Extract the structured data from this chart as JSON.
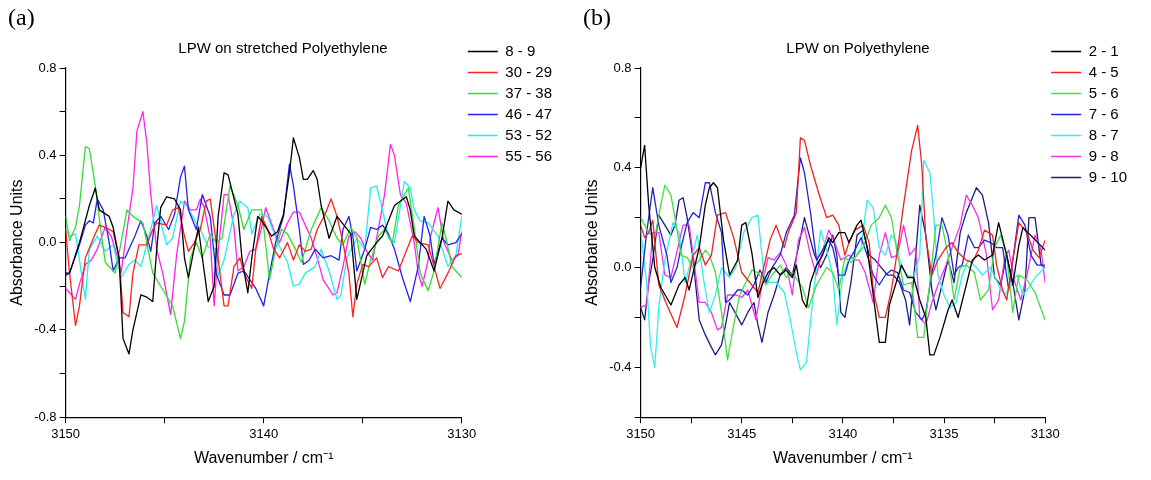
{
  "chart_data": [
    {
      "type": "line",
      "title": "LPW on stretched Polyethylene",
      "annotations": [
        "(a)"
      ],
      "xlabel": "Wavenumber / cm⁻¹",
      "ylabel": "Absorbance Units",
      "xlim": [
        3150,
        3130
      ],
      "xticks": [
        3150,
        {
          "value": 3145,
          "label": null
        },
        3140,
        {
          "value": 3135,
          "label": null
        },
        3130
      ],
      "ylim": [
        -0.8,
        0.8
      ],
      "yticks": [
        -0.8,
        {
          "value": -0.6,
          "label": null
        },
        -0.4,
        {
          "value": -0.2,
          "label": null
        },
        {
          "value": 0,
          "label": "0.0"
        },
        {
          "value": 0.2,
          "label": null
        },
        0.4,
        {
          "value": 0.6,
          "label": null
        },
        0.8
      ],
      "grid": false,
      "legend": "top right",
      "marker": "none",
      "line_style": "solid",
      "series": [
        {
          "name": "8 - 9",
          "color": "#000000",
          "x": [
            3150.0,
            3149.8,
            3149.3,
            3148.8,
            3148.5,
            3148.3,
            3147.8,
            3147.6,
            3147.3,
            3147.1,
            3146.8,
            3146.6,
            3146.2,
            3145.9,
            3145.6,
            3145.4,
            3145.2,
            3144.9,
            3144.5,
            3144.2,
            3144.0,
            3143.8,
            3143.3,
            3142.8,
            3142.5,
            3142.3,
            3142.0,
            3141.8,
            3141.3,
            3141.1,
            3140.8,
            3140.6,
            3140.3,
            3140.1,
            3139.6,
            3139.3,
            3139.0,
            3138.7,
            3138.5,
            3138.2,
            3138.0,
            3137.8,
            3137.5,
            3137.3,
            3137.1,
            3136.7,
            3136.3,
            3135.6,
            3135.3,
            3135.0,
            3134.8,
            3134.3,
            3134.0,
            3133.4,
            3132.8,
            3132.6,
            3132.4,
            3131.8,
            3131.4,
            3131.0,
            3130.7,
            3130.4,
            3130.0
          ],
          "values": [
            -0.14,
            -0.14,
            0.0,
            0.17,
            0.25,
            0.15,
            0.12,
            0.07,
            -0.07,
            -0.44,
            -0.51,
            -0.4,
            -0.24,
            -0.25,
            -0.27,
            -0.03,
            0.16,
            0.21,
            0.2,
            0.15,
            -0.07,
            -0.16,
            0.07,
            -0.27,
            -0.2,
            0.12,
            0.32,
            0.31,
            0.13,
            -0.07,
            -0.23,
            -0.07,
            0.12,
            0.1,
            0.03,
            0.05,
            0.13,
            0.32,
            0.48,
            0.39,
            0.29,
            0.29,
            0.33,
            0.29,
            0.17,
            0.02,
            0.12,
            0.04,
            -0.26,
            -0.14,
            -0.06,
            0.0,
            0.03,
            0.17,
            0.21,
            0.15,
            0.03,
            -0.03,
            -0.13,
            0.02,
            0.19,
            0.15,
            0.13
          ]
        },
        {
          "name": "30 - 29",
          "color": "#ff2020",
          "x": [
            3150.0,
            3149.8,
            3149.5,
            3149.3,
            3149.0,
            3148.6,
            3148.3,
            3148.0,
            3147.6,
            3147.3,
            3147.1,
            3146.8,
            3146.6,
            3146.3,
            3145.9,
            3145.6,
            3145.4,
            3144.9,
            3144.6,
            3144.3,
            3144.0,
            3143.8,
            3143.5,
            3143.2,
            3142.9,
            3142.7,
            3142.4,
            3142.0,
            3141.8,
            3141.5,
            3141.2,
            3141.0,
            3140.6,
            3140.4,
            3140.1,
            3139.8,
            3139.5,
            3139.2,
            3138.8,
            3138.5,
            3138.2,
            3137.9,
            3137.6,
            3137.3,
            3136.9,
            3136.6,
            3136.3,
            3136.0,
            3135.7,
            3135.5,
            3135.3,
            3135.0,
            3134.7,
            3134.3,
            3134.0,
            3133.7,
            3133.2,
            3132.9,
            3132.5,
            3132.2,
            3131.7,
            3131.4,
            3131.1,
            3130.7,
            3130.3,
            3130.0
          ],
          "values": [
            0.06,
            -0.14,
            -0.38,
            -0.29,
            -0.07,
            0.02,
            0.08,
            0.07,
            0.05,
            -0.07,
            -0.32,
            -0.34,
            -0.14,
            -0.01,
            -0.01,
            0.06,
            0.09,
            0.08,
            0.15,
            0.16,
            0.03,
            -0.04,
            0.0,
            0.06,
            0.19,
            0.2,
            0.0,
            -0.29,
            -0.29,
            -0.11,
            -0.07,
            -0.14,
            -0.21,
            -0.03,
            0.12,
            0.06,
            -0.03,
            -0.07,
            0.0,
            -0.08,
            -0.01,
            -0.04,
            -0.03,
            0.06,
            0.13,
            0.2,
            0.12,
            0.0,
            -0.14,
            -0.34,
            -0.19,
            -0.1,
            -0.11,
            -0.07,
            -0.16,
            -0.11,
            -0.13,
            -0.06,
            0.03,
            0.0,
            -0.01,
            -0.11,
            -0.21,
            -0.14,
            -0.06,
            -0.05
          ]
        },
        {
          "name": "37 - 38",
          "color": "#33dd33",
          "x": [
            3150.0,
            3149.8,
            3149.5,
            3149.3,
            3149.0,
            3148.8,
            3148.5,
            3148.2,
            3148.0,
            3147.5,
            3147.2,
            3146.9,
            3146.6,
            3146.1,
            3145.6,
            3145.2,
            3144.6,
            3144.2,
            3144.0,
            3143.7,
            3143.4,
            3143.1,
            3142.7,
            3142.4,
            3142.1,
            3141.7,
            3141.3,
            3141.0,
            3140.6,
            3140.1,
            3139.7,
            3139.4,
            3139.1,
            3138.8,
            3138.4,
            3138.1,
            3137.6,
            3137.1,
            3136.7,
            3136.3,
            3136.0,
            3135.6,
            3135.3,
            3134.9,
            3134.6,
            3134.2,
            3133.9,
            3133.5,
            3133.2,
            3132.7,
            3132.4,
            3132.1,
            3131.7,
            3131.4,
            3131.0,
            3130.8,
            3130.5,
            3130.0
          ],
          "values": [
            0.12,
            0.01,
            0.07,
            0.17,
            0.44,
            0.43,
            0.26,
            0.04,
            -0.09,
            -0.14,
            0.0,
            0.15,
            0.12,
            0.09,
            -0.14,
            -0.2,
            -0.29,
            -0.44,
            -0.36,
            -0.07,
            0.0,
            -0.07,
            0.04,
            0.0,
            0.02,
            0.26,
            0.17,
            0.06,
            0.15,
            0.15,
            -0.17,
            -0.03,
            0.06,
            0.04,
            -0.03,
            -0.09,
            0.06,
            0.16,
            0.1,
            0.02,
            -0.01,
            0.07,
            0.02,
            -0.19,
            -0.08,
            0.03,
            0.06,
            0.0,
            0.17,
            0.25,
            0.07,
            -0.14,
            -0.22,
            -0.13,
            0.09,
            0.02,
            -0.11,
            -0.16
          ]
        },
        {
          "name": "46 - 47",
          "color": "#2222ee",
          "x": [
            3150.0,
            3149.8,
            3149.3,
            3149.0,
            3148.8,
            3148.6,
            3148.4,
            3148.1,
            3147.8,
            3147.6,
            3147.3,
            3147.0,
            3146.5,
            3146.2,
            3145.9,
            3145.7,
            3145.5,
            3145.2,
            3144.8,
            3144.5,
            3144.2,
            3144.0,
            3143.8,
            3143.4,
            3143.1,
            3142.7,
            3142.4,
            3142.0,
            3141.7,
            3141.3,
            3141.0,
            3140.7,
            3140.4,
            3140.0,
            3139.7,
            3139.4,
            3139.0,
            3138.7,
            3138.5,
            3138.2,
            3138.0,
            3137.7,
            3137.4,
            3137.0,
            3136.6,
            3136.2,
            3136.0,
            3135.7,
            3135.5,
            3135.3,
            3134.9,
            3134.6,
            3134.3,
            3134.0,
            3133.7,
            3133.4,
            3133.0,
            3132.6,
            3132.2,
            3131.9,
            3131.6,
            3131.4,
            3131.0,
            3130.7,
            3130.3,
            3130.0
          ],
          "values": [
            -0.15,
            -0.14,
            -0.01,
            0.08,
            0.1,
            0.09,
            0.2,
            0.15,
            0.0,
            -0.13,
            -0.07,
            -0.07,
            0.03,
            0.1,
            0.03,
            -0.04,
            0.09,
            0.12,
            0.06,
            0.13,
            0.3,
            0.35,
            0.15,
            0.06,
            0.22,
            0.12,
            -0.14,
            -0.24,
            -0.24,
            -0.14,
            -0.13,
            -0.17,
            -0.21,
            -0.29,
            -0.14,
            0.0,
            0.12,
            0.36,
            0.26,
            0.06,
            -0.1,
            -0.08,
            -0.03,
            -0.07,
            -0.06,
            -0.08,
            0.06,
            0.12,
            0.03,
            -0.13,
            -0.03,
            0.07,
            0.06,
            0.08,
            0.04,
            -0.03,
            -0.16,
            -0.27,
            -0.11,
            0.12,
            0.03,
            -0.1,
            0.02,
            -0.01,
            0.0,
            0.04
          ]
        },
        {
          "name": "53 - 52",
          "color": "#22eeee",
          "x": [
            3150.0,
            3149.8,
            3149.5,
            3149.3,
            3149.0,
            3148.8,
            3148.4,
            3148.0,
            3147.6,
            3147.2,
            3146.8,
            3146.5,
            3146.2,
            3145.9,
            3145.4,
            3145.1,
            3144.9,
            3144.6,
            3144.2,
            3143.9,
            3143.6,
            3143.2,
            3142.8,
            3142.4,
            3142.3,
            3142.0,
            3141.5,
            3141.2,
            3140.8,
            3140.6,
            3140.2,
            3139.8,
            3139.3,
            3138.8,
            3138.5,
            3138.2,
            3137.9,
            3137.4,
            3137.1,
            3136.7,
            3136.3,
            3136.1,
            3135.8,
            3135.3,
            3134.9,
            3134.6,
            3134.3,
            3134.0,
            3133.7,
            3133.4,
            3132.9,
            3132.6,
            3132.4,
            3132.1,
            3131.7,
            3131.2,
            3130.7,
            3130.3,
            3130.0
          ],
          "values": [
            0.06,
            0.03,
            0.04,
            -0.08,
            -0.26,
            -0.03,
            0.03,
            -0.04,
            -0.01,
            -0.16,
            -0.1,
            -0.08,
            -0.11,
            -0.01,
            0.17,
            0.06,
            -0.01,
            0.02,
            0.19,
            0.17,
            0.12,
            0.06,
            -0.02,
            -0.03,
            -0.15,
            -0.08,
            0.13,
            0.19,
            0.16,
            0.04,
            0.13,
            0.12,
            0.0,
            -0.09,
            -0.2,
            -0.19,
            -0.14,
            -0.11,
            -0.03,
            -0.13,
            -0.26,
            -0.24,
            -0.07,
            0.02,
            -0.03,
            0.25,
            0.26,
            0.15,
            0.02,
            0.0,
            0.28,
            0.25,
            0.15,
            0.1,
            0.09,
            0.03,
            -0.11,
            -0.06,
            0.12
          ]
        },
        {
          "name": "55 - 56",
          "color": "#ff22ee",
          "x": [
            3150.0,
            3149.8,
            3149.5,
            3149.3,
            3149.0,
            3148.7,
            3148.4,
            3148.0,
            3147.7,
            3147.4,
            3147.2,
            3146.9,
            3146.6,
            3146.4,
            3146.1,
            3145.9,
            3145.7,
            3145.4,
            3145.1,
            3144.7,
            3144.4,
            3144.0,
            3143.7,
            3143.4,
            3143.2,
            3143.0,
            3142.7,
            3142.5,
            3142.3,
            3142.0,
            3141.8,
            3141.5,
            3141.3,
            3141.0,
            3140.7,
            3140.4,
            3140.1,
            3139.9,
            3139.5,
            3139.2,
            3138.8,
            3138.5,
            3138.2,
            3137.9,
            3137.6,
            3137.3,
            3137.0,
            3136.5,
            3136.3,
            3136.0,
            3135.7,
            3135.4,
            3135.1,
            3134.8,
            3134.5,
            3134.2,
            3133.9,
            3133.6,
            3133.4,
            3133.1,
            3132.8,
            3132.4,
            3132.2,
            3132.0,
            3131.7,
            3131.6,
            3131.2,
            3130.9,
            3130.5,
            3130.2,
            3130.0
          ],
          "values": [
            -0.21,
            -0.23,
            -0.26,
            -0.19,
            -0.1,
            -0.08,
            -0.03,
            0.07,
            0.03,
            -0.06,
            -0.14,
            0.06,
            0.25,
            0.51,
            0.6,
            0.46,
            0.22,
            -0.03,
            -0.14,
            -0.33,
            -0.06,
            0.19,
            0.15,
            0.15,
            0.2,
            0.16,
            0.02,
            -0.29,
            -0.04,
            0.22,
            0.22,
            0.07,
            -0.13,
            -0.11,
            -0.04,
            -0.03,
            0.07,
            0.16,
            0.06,
            0.0,
            0.09,
            0.14,
            0.14,
            0.08,
            0.02,
            -0.07,
            -0.17,
            -0.24,
            -0.23,
            -0.11,
            0.03,
            0.05,
            0.02,
            -0.04,
            -0.08,
            0.07,
            0.22,
            0.45,
            0.4,
            0.22,
            0.18,
            0.0,
            -0.14,
            -0.2,
            -0.08,
            0.02,
            0.16,
            0.0,
            -0.08,
            -0.06,
            0.05
          ]
        }
      ]
    },
    {
      "type": "line",
      "title": "LPW on Polyethylene",
      "annotations": [
        "(b)"
      ],
      "xlabel": "Wavenumber / cm⁻¹",
      "ylabel": "Absorbance Units",
      "xlim": [
        3150,
        3130
      ],
      "xticks": [
        3150,
        {
          "value": 3147.5,
          "label": null
        },
        3145,
        {
          "value": 3142.5,
          "label": null
        },
        3140,
        {
          "value": 3137.5,
          "label": null
        },
        3135,
        {
          "value": 3132.5,
          "label": null
        },
        3130
      ],
      "ylim": [
        -0.6,
        0.8
      ],
      "yticks": [
        {
          "value": -0.6,
          "label": null
        },
        -0.4,
        {
          "value": -0.2,
          "label": null
        },
        {
          "value": 0,
          "label": "0.0"
        },
        {
          "value": 0.2,
          "label": null
        },
        0.4,
        {
          "value": 0.6,
          "label": null
        },
        0.8
      ],
      "grid": false,
      "legend": "top right",
      "marker": "none",
      "line_style": "solid",
      "series": [
        {
          "name": "2 - 1",
          "color": "#000000",
          "x": [
            3150.0,
            3149.8,
            3149.6,
            3149.3,
            3149.0,
            3148.5,
            3148.1,
            3147.8,
            3147.6,
            3147.4,
            3147.1,
            3146.8,
            3146.6,
            3146.4,
            3146.2,
            3145.9,
            3145.6,
            3145.2,
            3145.0,
            3144.8,
            3144.5,
            3144.2,
            3144.0,
            3143.7,
            3143.4,
            3143.1,
            3142.8,
            3142.5,
            3142.3,
            3142.0,
            3141.8,
            3141.6,
            3141.3,
            3141.0,
            3140.7,
            3140.5,
            3140.2,
            3139.9,
            3139.7,
            3139.3,
            3139.1,
            3138.8,
            3138.5,
            3138.2,
            3137.9,
            3137.7,
            3137.4,
            3137.1,
            3136.8,
            3136.5,
            3136.2,
            3135.9,
            3135.7,
            3135.5,
            3135.2,
            3134.8,
            3134.6,
            3134.3,
            3133.9,
            3133.6,
            3133.3,
            3133.0,
            3132.6,
            3132.3,
            3131.9,
            3131.6,
            3131.3,
            3131.1,
            3130.6,
            3130.0
          ],
          "values": [
            0.4,
            0.49,
            0.25,
            0.0,
            -0.08,
            -0.15,
            -0.07,
            -0.04,
            -0.09,
            -0.02,
            0.08,
            0.25,
            0.32,
            0.34,
            0.32,
            0.11,
            -0.03,
            0.03,
            0.17,
            0.18,
            0.06,
            -0.12,
            -0.07,
            -0.02,
            0.0,
            -0.03,
            -0.01,
            -0.04,
            0.01,
            -0.13,
            -0.16,
            -0.06,
            0.01,
            0.05,
            0.12,
            0.1,
            0.14,
            0.14,
            0.1,
            0.17,
            0.19,
            0.08,
            -0.11,
            -0.3,
            -0.3,
            -0.15,
            -0.07,
            0.01,
            -0.04,
            -0.04,
            -0.13,
            -0.2,
            -0.35,
            -0.35,
            -0.28,
            -0.17,
            -0.13,
            -0.2,
            -0.07,
            0.03,
            0.05,
            0.03,
            0.05,
            0.18,
            0.05,
            -0.07,
            0.09,
            0.16,
            0.12,
            0.07
          ]
        },
        {
          "name": "4 - 5",
          "color": "#ee2222",
          "x": [
            3150.0,
            3149.8,
            3149.6,
            3149.4,
            3149.1,
            3148.7,
            3148.2,
            3147.8,
            3147.4,
            3147.1,
            3146.8,
            3146.5,
            3146.2,
            3145.8,
            3145.4,
            3145.0,
            3144.2,
            3144.0,
            3143.6,
            3143.3,
            3142.9,
            3142.7,
            3142.3,
            3142.1,
            3141.9,
            3141.6,
            3141.2,
            3140.8,
            3140.5,
            3140.2,
            3139.9,
            3139.7,
            3139.4,
            3139.0,
            3138.7,
            3138.5,
            3138.2,
            3137.9,
            3137.6,
            3137.3,
            3137.0,
            3136.6,
            3136.3,
            3136.1,
            3135.9,
            3135.6,
            3135.3,
            3134.9,
            3134.6,
            3134.3,
            3133.9,
            3133.6,
            3133.3,
            3133.0,
            3132.6,
            3132.4,
            3132.1,
            3131.9,
            3131.6,
            3131.3,
            3130.9,
            3130.6,
            3130.3,
            3130.0
          ],
          "values": [
            0.17,
            0.12,
            0.14,
            0.19,
            -0.07,
            -0.15,
            -0.24,
            -0.11,
            0.05,
            0.08,
            0.01,
            0.05,
            0.21,
            0.22,
            0.12,
            -0.02,
            -0.1,
            -0.03,
            0.11,
            0.17,
            0.08,
            0.14,
            0.22,
            0.52,
            0.51,
            0.41,
            0.3,
            0.2,
            0.21,
            0.17,
            0.05,
            0.1,
            0.15,
            0.17,
            0.1,
            -0.09,
            -0.2,
            -0.2,
            -0.09,
            0.07,
            0.25,
            0.47,
            0.57,
            0.41,
            0.12,
            -0.03,
            0.03,
            0.08,
            0.1,
            0.06,
            0.03,
            0.02,
            0.07,
            0.15,
            0.13,
            0.01,
            -0.09,
            -0.13,
            0.03,
            0.18,
            0.14,
            0.07,
            0.04,
            0.11
          ]
        },
        {
          "name": "5 - 6",
          "color": "#44dd44",
          "x": [
            3150.0,
            3149.6,
            3149.3,
            3149.0,
            3148.8,
            3148.5,
            3148.3,
            3148.0,
            3147.7,
            3147.4,
            3147.1,
            3146.8,
            3146.6,
            3146.3,
            3146.0,
            3145.7,
            3145.4,
            3145.1,
            3144.8,
            3144.5,
            3144.2,
            3143.8,
            3143.5,
            3143.1,
            3142.8,
            3142.5,
            3142.0,
            3141.7,
            3141.3,
            3140.8,
            3140.5,
            3140.2,
            3139.9,
            3139.6,
            3139.3,
            3139.0,
            3138.6,
            3138.2,
            3137.9,
            3137.6,
            3137.3,
            3137.0,
            3136.6,
            3136.3,
            3136.0,
            3135.7,
            3135.4,
            3135.1,
            3134.8,
            3134.5,
            3134.2,
            3133.9,
            3133.5,
            3133.2,
            3132.8,
            3132.5,
            3132.2,
            3131.9,
            3131.6,
            3131.3,
            3130.9,
            3130.5,
            3130.0
          ],
          "values": [
            0.2,
            0.14,
            0.12,
            0.25,
            0.33,
            0.29,
            0.2,
            0.05,
            0.04,
            0.0,
            0.03,
            0.07,
            0.05,
            -0.02,
            -0.18,
            -0.37,
            -0.23,
            -0.11,
            -0.06,
            -0.01,
            -0.02,
            -0.07,
            -0.03,
            0.01,
            -0.04,
            -0.02,
            -0.08,
            -0.16,
            -0.07,
            0.0,
            -0.02,
            -0.09,
            0.04,
            0.02,
            0.05,
            0.08,
            0.17,
            0.2,
            0.25,
            0.2,
            0.05,
            -0.07,
            -0.06,
            -0.28,
            -0.28,
            -0.06,
            0.17,
            0.17,
            0.05,
            -0.13,
            0.0,
            0.01,
            -0.02,
            -0.13,
            -0.09,
            0.08,
            0.13,
            0.05,
            -0.18,
            -0.03,
            -0.05,
            -0.1,
            -0.21
          ]
        },
        {
          "name": "7 - 6",
          "color": "#2222dd",
          "x": [
            3150.0,
            3149.7,
            3149.4,
            3149.1,
            3148.7,
            3148.5,
            3148.2,
            3148.0,
            3147.7,
            3147.4,
            3147.1,
            3146.8,
            3146.6,
            3146.3,
            3146.0,
            3145.8,
            3145.6,
            3145.2,
            3145.0,
            3144.7,
            3144.4,
            3144.1,
            3143.8,
            3143.5,
            3143.1,
            3142.8,
            3142.4,
            3142.1,
            3141.9,
            3141.6,
            3141.3,
            3141.0,
            3140.7,
            3140.5,
            3140.2,
            3139.9,
            3139.7,
            3139.4,
            3139.1,
            3138.8,
            3138.5,
            3138.2,
            3137.9,
            3137.6,
            3137.3,
            3137.0,
            3136.7,
            3136.4,
            3136.1,
            3135.9,
            3135.6,
            3135.4,
            3135.1,
            3134.8,
            3134.5,
            3134.3,
            3134.1,
            3133.8,
            3133.5,
            3133.3,
            3133.0,
            3132.7,
            3132.4,
            3132.1,
            3131.8,
            3131.6,
            3131.3,
            3131.0,
            3130.7,
            3130.4,
            3130.0
          ],
          "values": [
            -0.08,
            0.14,
            0.32,
            0.17,
            0.05,
            -0.06,
            0.0,
            0.08,
            0.18,
            0.22,
            0.2,
            0.34,
            0.34,
            0.22,
            0.14,
            -0.14,
            -0.13,
            -0.09,
            -0.09,
            -0.11,
            -0.07,
            -0.01,
            -0.06,
            0.0,
            0.05,
            0.14,
            0.21,
            0.44,
            0.38,
            0.22,
            0.03,
            0.07,
            0.11,
            0.08,
            -0.03,
            -0.03,
            0.03,
            0.07,
            0.12,
            0.05,
            -0.03,
            -0.07,
            -0.03,
            -0.01,
            -0.02,
            -0.09,
            -0.1,
            -0.18,
            -0.21,
            -0.18,
            -0.02,
            0.05,
            0.2,
            0.13,
            -0.03,
            0.0,
            0.01,
            0.13,
            0.08,
            0.08,
            0.11,
            0.1,
            0.08,
            0.08,
            -0.09,
            0.03,
            0.21,
            0.17,
            0.05,
            0.01,
            0.01
          ]
        },
        {
          "name": "8 - 7",
          "color": "#33eeee",
          "x": [
            3150.0,
            3149.7,
            3149.5,
            3149.3,
            3149.1,
            3148.8,
            3148.4,
            3148.1,
            3147.8,
            3147.5,
            3147.2,
            3146.9,
            3146.6,
            3146.3,
            3146.0,
            3145.6,
            3145.3,
            3144.9,
            3144.5,
            3144.2,
            3143.9,
            3143.7,
            3143.3,
            3142.9,
            3142.6,
            3142.3,
            3142.1,
            3141.8,
            3141.5,
            3141.1,
            3140.8,
            3140.5,
            3140.3,
            3140.0,
            3139.7,
            3139.4,
            3139.1,
            3138.8,
            3138.5,
            3138.2,
            3137.9,
            3137.6,
            3137.4,
            3137.1,
            3136.8,
            3136.5,
            3136.2,
            3136.0,
            3135.7,
            3135.5,
            3135.3,
            3135.0,
            3134.7,
            3134.4,
            3134.1,
            3133.8,
            3133.4,
            3133.1,
            3132.7,
            3132.3,
            3132.0,
            3131.7,
            3131.4,
            3131.1,
            3130.8,
            3130.5,
            3130.0
          ],
          "values": [
            0.15,
            -0.06,
            -0.32,
            -0.4,
            -0.16,
            0.03,
            0.18,
            0.14,
            -0.06,
            0.03,
            0.13,
            -0.04,
            -0.18,
            -0.11,
            0.0,
            -0.04,
            0.0,
            0.14,
            0.2,
            0.21,
            -0.03,
            -0.06,
            -0.06,
            -0.1,
            -0.21,
            -0.34,
            -0.41,
            -0.38,
            -0.14,
            0.15,
            0.07,
            -0.03,
            -0.23,
            -0.03,
            0.03,
            0.04,
            0.08,
            0.27,
            0.24,
            0.08,
            0.05,
            0.13,
            0.11,
            0.0,
            -0.03,
            -0.04,
            0.05,
            0.43,
            0.38,
            0.2,
            -0.03,
            -0.11,
            -0.16,
            -0.14,
            -0.03,
            0.03,
            0.0,
            -0.03,
            0.0,
            -0.07,
            -0.11,
            -0.07,
            -0.03,
            -0.11,
            -0.08,
            -0.04,
            0.0
          ]
        },
        {
          "name": "9 - 8",
          "color": "#ee33ee",
          "x": [
            3150.0,
            3149.7,
            3149.4,
            3149.1,
            3148.8,
            3148.5,
            3148.3,
            3147.9,
            3147.6,
            3147.4,
            3147.1,
            3146.8,
            3146.5,
            3146.2,
            3146.0,
            3145.7,
            3145.3,
            3145.0,
            3144.7,
            3144.3,
            3144.0,
            3143.7,
            3143.4,
            3143.1,
            3142.8,
            3142.5,
            3142.2,
            3141.9,
            3141.6,
            3141.3,
            3141.0,
            3140.7,
            3140.4,
            3140.1,
            3139.7,
            3139.4,
            3139.2,
            3138.9,
            3138.5,
            3138.2,
            3137.9,
            3137.6,
            3137.3,
            3137.0,
            3136.7,
            3136.4,
            3136.2,
            3135.9,
            3135.6,
            3135.3,
            3134.9,
            3134.6,
            3134.2,
            3133.9,
            3133.6,
            3133.3,
            3132.9,
            3132.6,
            3132.3,
            3132.0,
            3131.8,
            3131.5,
            3131.2,
            3130.9,
            3130.5,
            3130.2,
            3130.0
          ],
          "values": [
            -0.16,
            -0.15,
            0.14,
            0.14,
            -0.03,
            -0.04,
            0.03,
            0.17,
            0.17,
            0.05,
            -0.14,
            -0.14,
            -0.18,
            -0.25,
            -0.24,
            -0.11,
            -0.11,
            -0.12,
            -0.09,
            -0.21,
            -0.07,
            0.04,
            0.03,
            0.06,
            0.01,
            -0.11,
            0.11,
            0.16,
            0.05,
            -0.03,
            0.07,
            0.15,
            0.1,
            0.03,
            0.05,
            0.03,
            0.03,
            -0.02,
            -0.14,
            0.05,
            0.14,
            0.04,
            0.05,
            0.17,
            0.05,
            0.08,
            -0.2,
            -0.23,
            -0.14,
            -0.07,
            0.01,
            0.08,
            0.17,
            0.29,
            0.25,
            0.2,
            0.05,
            -0.17,
            -0.13,
            0.04,
            0.07,
            -0.06,
            -0.13,
            -0.03,
            0.13,
            0.07,
            -0.06
          ]
        },
        {
          "name": "9 - 10",
          "color": "#1c1c80",
          "x": [
            3150.0,
            3149.8,
            3149.6,
            3149.4,
            3149.1,
            3148.8,
            3148.5,
            3148.3,
            3148.1,
            3147.9,
            3147.7,
            3147.4,
            3147.1,
            3146.8,
            3146.5,
            3146.3,
            3146.0,
            3145.8,
            3145.6,
            3145.2,
            3145.0,
            3144.7,
            3144.4,
            3144.2,
            3144.0,
            3143.7,
            3143.4,
            3143.1,
            3142.8,
            3142.5,
            3142.2,
            3141.9,
            3141.7,
            3141.4,
            3141.1,
            3140.8,
            3140.5,
            3140.3,
            3140.1,
            3139.9,
            3139.6,
            3139.3,
            3139.0,
            3138.7,
            3138.4,
            3138.1,
            3137.8,
            3137.5,
            3137.2,
            3136.9,
            3136.7,
            3136.4,
            3136.2,
            3135.9,
            3135.6,
            3135.4,
            3135.1,
            3134.8,
            3134.5,
            3134.2,
            3133.9,
            3133.6,
            3133.4,
            3133.1,
            3132.8,
            3132.5,
            3132.2,
            3131.9,
            3131.6,
            3131.3,
            3131.0,
            3130.8,
            3130.5,
            3130.2,
            3130.0
          ],
          "values": [
            -0.16,
            -0.21,
            -0.06,
            0.03,
            0.21,
            0.17,
            0.13,
            0.17,
            0.27,
            0.28,
            0.2,
            0.03,
            -0.21,
            -0.27,
            -0.32,
            -0.35,
            -0.31,
            -0.23,
            -0.14,
            -0.2,
            -0.23,
            -0.18,
            -0.14,
            -0.23,
            -0.3,
            -0.18,
            -0.11,
            -0.03,
            0.0,
            -0.03,
            0.08,
            0.2,
            0.14,
            0.05,
            0.0,
            0.05,
            0.13,
            0.05,
            -0.18,
            -0.2,
            -0.06,
            0.13,
            0.15,
            0.05,
            0.03,
            0.0,
            -0.03,
            -0.03,
            -0.06,
            -0.13,
            -0.23,
            0.05,
            0.25,
            0.13,
            -0.09,
            -0.17,
            -0.07,
            0.03,
            -0.06,
            0.14,
            0.22,
            0.28,
            0.32,
            0.29,
            0.18,
            -0.04,
            -0.07,
            0.05,
            -0.06,
            -0.21,
            -0.09,
            0.2,
            0.2,
            0.01,
            0.0
          ]
        }
      ]
    }
  ]
}
